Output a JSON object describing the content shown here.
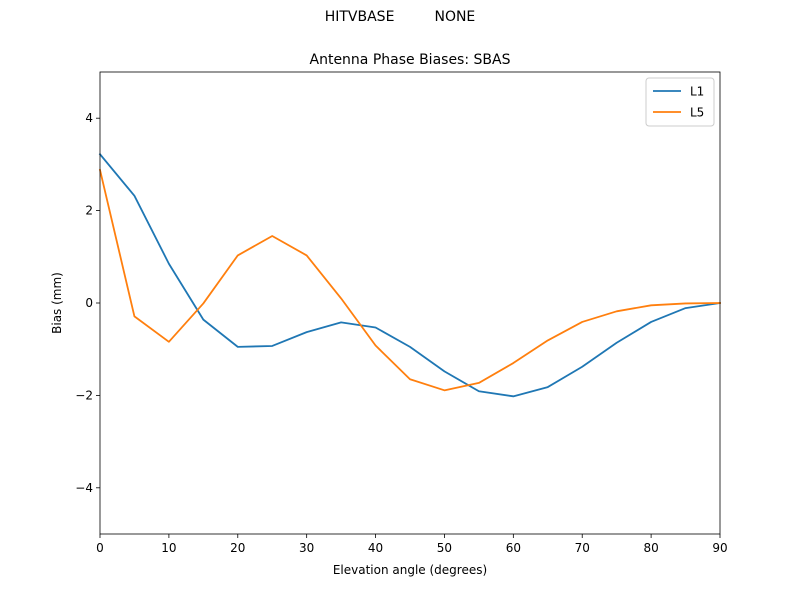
{
  "figure": {
    "suptitle": "HITVBASE         NONE"
  },
  "chart_data": {
    "type": "line",
    "title": "Antenna Phase Biases: SBAS",
    "xlabel": "Elevation angle (degrees)",
    "ylabel": "Bias (mm)",
    "xlim": [
      0,
      90
    ],
    "ylim": [
      -5,
      5
    ],
    "xticks": [
      0,
      10,
      20,
      30,
      40,
      50,
      60,
      70,
      80,
      90
    ],
    "yticks": [
      -4,
      -2,
      0,
      2,
      4
    ],
    "ytick_labels": [
      "−4",
      "−2",
      "0",
      "2",
      "4"
    ],
    "grid": false,
    "legend_position": "top-right",
    "x": [
      0,
      5,
      10,
      15,
      20,
      25,
      30,
      35,
      40,
      45,
      50,
      55,
      60,
      65,
      70,
      75,
      80,
      85,
      90
    ],
    "series": [
      {
        "name": "L1",
        "color": "#1f77b4",
        "values": [
          3.22,
          2.32,
          0.85,
          -0.36,
          -0.95,
          -0.93,
          -0.63,
          -0.42,
          -0.53,
          -0.95,
          -1.48,
          -1.91,
          -2.02,
          -1.82,
          -1.38,
          -0.86,
          -0.41,
          -0.11,
          0.0
        ]
      },
      {
        "name": "L5",
        "color": "#ff7f0e",
        "values": [
          2.88,
          -0.29,
          -0.84,
          -0.01,
          1.03,
          1.45,
          1.03,
          0.1,
          -0.92,
          -1.65,
          -1.89,
          -1.73,
          -1.3,
          -0.81,
          -0.41,
          -0.18,
          -0.05,
          -0.01,
          0.0
        ]
      }
    ]
  }
}
